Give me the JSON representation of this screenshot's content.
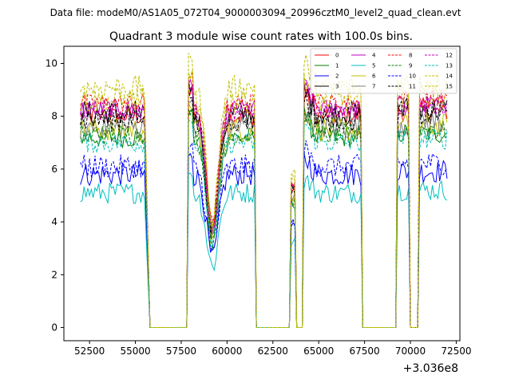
{
  "chart_data": {
    "type": "line",
    "suptitle": "Data file: modeM0/AS1A05_072T04_9000003094_20996cztM0_level2_quad_clean.evt",
    "title": "Quadrant 3 module wise count rates with 100.0s bins.",
    "xlabel": "",
    "ylabel": "",
    "x_offset_label": "+3.036e8",
    "xlim": [
      51100,
      72700
    ],
    "ylim": [
      -0.5,
      10.65
    ],
    "x_ticks": [
      52500,
      55000,
      57500,
      60000,
      62500,
      65000,
      67500,
      70000,
      72500
    ],
    "x_tick_labels": [
      "52500",
      "55000",
      "57500",
      "60000",
      "62500",
      "65000",
      "67500",
      "70000",
      "72500"
    ],
    "y_ticks": [
      0,
      2,
      4,
      6,
      8,
      10
    ],
    "y_tick_labels": [
      "0",
      "2",
      "4",
      "6",
      "8",
      "10"
    ],
    "grid": false,
    "legend_location": "top-right",
    "segments": [
      {
        "start": 52000,
        "end": 55500,
        "kind": "flat"
      },
      {
        "start": 55800,
        "end": 57800,
        "kind": "zero"
      },
      {
        "start": 57900,
        "end": 61500,
        "kind": "dip",
        "dip_center": 59200,
        "dip_factor": 0.45
      },
      {
        "start": 61600,
        "end": 63400,
        "kind": "zero"
      },
      {
        "start": 63500,
        "end": 63700,
        "kind": "spike",
        "spike_factor": 0.65
      },
      {
        "start": 63800,
        "end": 64100,
        "kind": "zero"
      },
      {
        "start": 64200,
        "end": 67300,
        "kind": "bump",
        "peak_factor": 1.1
      },
      {
        "start": 67400,
        "end": 69200,
        "kind": "zero"
      },
      {
        "start": 69300,
        "end": 69900,
        "kind": "short"
      },
      {
        "start": 70000,
        "end": 70400,
        "kind": "zero"
      },
      {
        "start": 70500,
        "end": 72000,
        "kind": "short"
      }
    ],
    "series": [
      {
        "name": "0",
        "color": "#ff0000",
        "dash": "solid",
        "base": 8.0
      },
      {
        "name": "1",
        "color": "#008000",
        "dash": "solid",
        "base": 7.2
      },
      {
        "name": "2",
        "color": "#0000ff",
        "dash": "solid",
        "base": 5.8
      },
      {
        "name": "3",
        "color": "#000000",
        "dash": "solid",
        "base": 8.1
      },
      {
        "name": "4",
        "color": "#c000c0",
        "dash": "solid",
        "base": 8.3
      },
      {
        "name": "5",
        "color": "#00bfbf",
        "dash": "solid",
        "base": 5.1
      },
      {
        "name": "6",
        "color": "#bfbf00",
        "dash": "solid",
        "base": 7.5
      },
      {
        "name": "7",
        "color": "#808080",
        "dash": "solid",
        "base": 7.6
      },
      {
        "name": "8",
        "color": "#ff0000",
        "dash": "dashed",
        "base": 8.5
      },
      {
        "name": "9",
        "color": "#008000",
        "dash": "dashed",
        "base": 7.3
      },
      {
        "name": "10",
        "color": "#0000ff",
        "dash": "dashed",
        "base": 6.1
      },
      {
        "name": "11",
        "color": "#000000",
        "dash": "dashed",
        "base": 7.9
      },
      {
        "name": "12",
        "color": "#c000c0",
        "dash": "dashed",
        "base": 8.2
      },
      {
        "name": "13",
        "color": "#00bfbf",
        "dash": "dashed",
        "base": 7.0
      },
      {
        "name": "14",
        "color": "#bfbf00",
        "dash": "dashed",
        "base": 9.1
      },
      {
        "name": "15",
        "color": "#bfbf00",
        "dash": "dashed",
        "base": 8.6
      }
    ]
  }
}
